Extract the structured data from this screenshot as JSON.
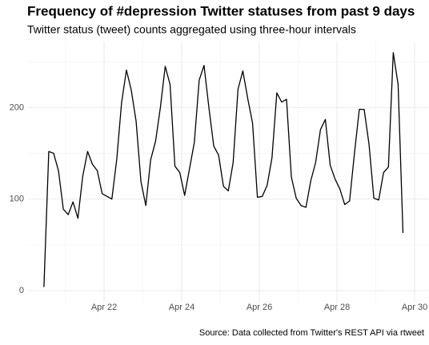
{
  "chart_data": {
    "type": "line",
    "title": "Frequency of #depression Twitter statuses from past 9 days",
    "subtitle": "Twitter status (tweet) counts aggregated using three-hour intervals",
    "caption": "Source: Data collected from Twitter's REST API via rtweet",
    "x": [
      20.45,
      20.575,
      20.7,
      20.825,
      20.95,
      21.075,
      21.2,
      21.325,
      21.45,
      21.575,
      21.7,
      21.825,
      21.95,
      22.075,
      22.2,
      22.325,
      22.45,
      22.575,
      22.7,
      22.825,
      22.95,
      23.075,
      23.2,
      23.325,
      23.45,
      23.575,
      23.7,
      23.825,
      23.95,
      24.075,
      24.2,
      24.325,
      24.45,
      24.575,
      24.7,
      24.825,
      24.95,
      25.075,
      25.2,
      25.325,
      25.45,
      25.575,
      25.7,
      25.825,
      25.95,
      26.075,
      26.2,
      26.325,
      26.45,
      26.575,
      26.7,
      26.825,
      26.95,
      27.075,
      27.2,
      27.325,
      27.45,
      27.575,
      27.7,
      27.825,
      27.95,
      28.075,
      28.2,
      28.325,
      28.45,
      28.575,
      28.7,
      28.825,
      28.95,
      29.075,
      29.2,
      29.325,
      29.45,
      29.575,
      29.7
    ],
    "series": [
      {
        "color": "#000000",
        "values": [
          4,
          152,
          150,
          131,
          89,
          83,
          97,
          79,
          125,
          152,
          138,
          131,
          106,
          103,
          100,
          143,
          205,
          241,
          219,
          185,
          119,
          93,
          143,
          163,
          200,
          245,
          225,
          136,
          129,
          104,
          133,
          162,
          230,
          246,
          200,
          158,
          148,
          114,
          109,
          140,
          220,
          240,
          210,
          183,
          102,
          103,
          115,
          145,
          216,
          206,
          209,
          124,
          101,
          93,
          91,
          120,
          140,
          176,
          187,
          137,
          122,
          111,
          94,
          98,
          150,
          198,
          198,
          160,
          101,
          99,
          129,
          135,
          260,
          225,
          63
        ]
      }
    ],
    "xlim": [
      20.04,
      30.35
    ],
    "ylim": [
      -13,
      272
    ],
    "xticks": [
      {
        "value": 22,
        "label": "Apr 22"
      },
      {
        "value": 24,
        "label": "Apr 24"
      },
      {
        "value": 26,
        "label": "Apr 26"
      },
      {
        "value": 28,
        "label": "Apr 28"
      },
      {
        "value": 30,
        "label": "Apr 30"
      }
    ],
    "yticks": [
      0,
      100,
      200
    ],
    "xminor": [
      21,
      23,
      25,
      27,
      29
    ],
    "yminor": [
      50,
      150,
      250
    ],
    "grid": true
  }
}
